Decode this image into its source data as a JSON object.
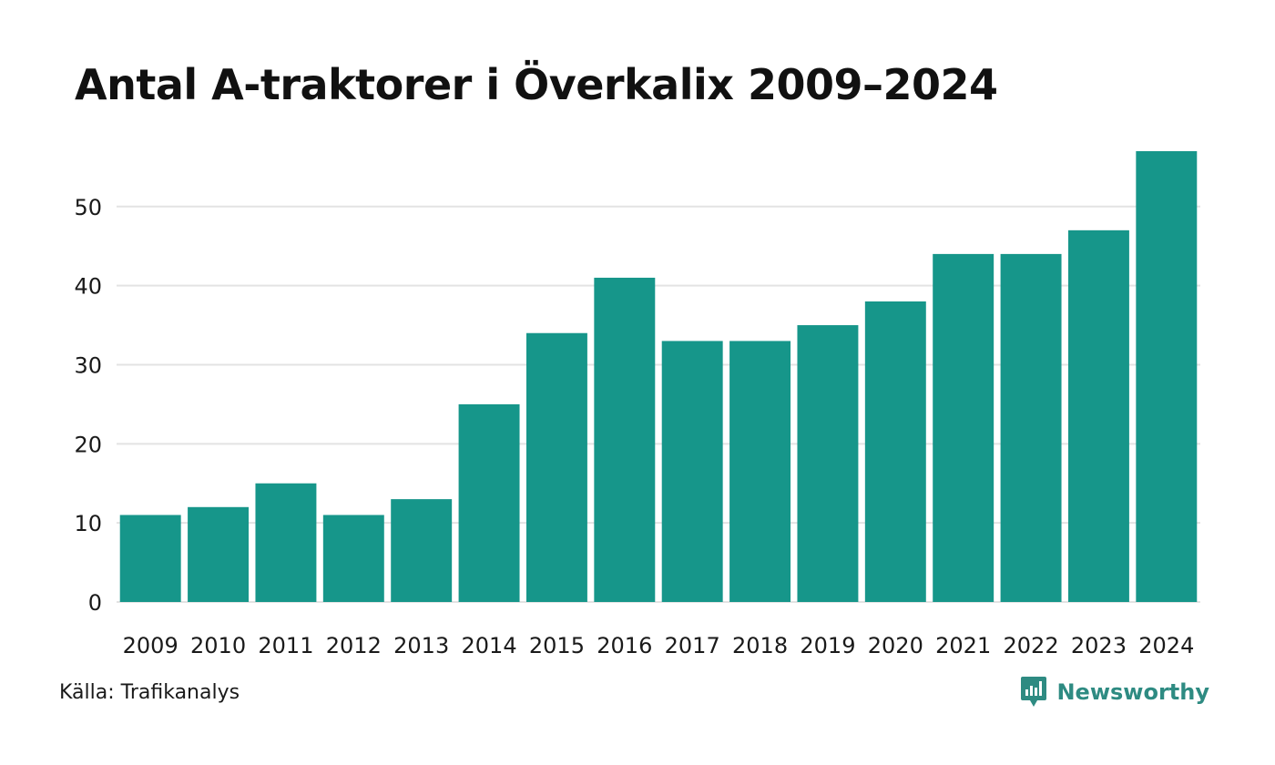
{
  "title": "Antal A-traktorer i Överkalix 2009–2024",
  "source": "Källa: Trafikanalys",
  "brand": {
    "name": "Newsworthy",
    "icon": "newsworthy-logo-icon",
    "color": "#2e8b82"
  },
  "colors": {
    "bar": "#16968a",
    "grid": "#e3e3e3"
  },
  "chart_data": {
    "type": "bar",
    "title": "Antal A-traktorer i Överkalix 2009–2024",
    "xlabel": "",
    "ylabel": "",
    "categories": [
      "2009",
      "2010",
      "2011",
      "2012",
      "2013",
      "2014",
      "2015",
      "2016",
      "2017",
      "2018",
      "2019",
      "2020",
      "2021",
      "2022",
      "2023",
      "2024"
    ],
    "values": [
      11,
      12,
      15,
      11,
      13,
      25,
      34,
      41,
      33,
      33,
      35,
      38,
      44,
      44,
      47,
      57
    ],
    "yticks": [
      0,
      10,
      20,
      30,
      40,
      50
    ],
    "ylim": [
      0,
      57
    ],
    "grid": true,
    "legend": "none"
  }
}
